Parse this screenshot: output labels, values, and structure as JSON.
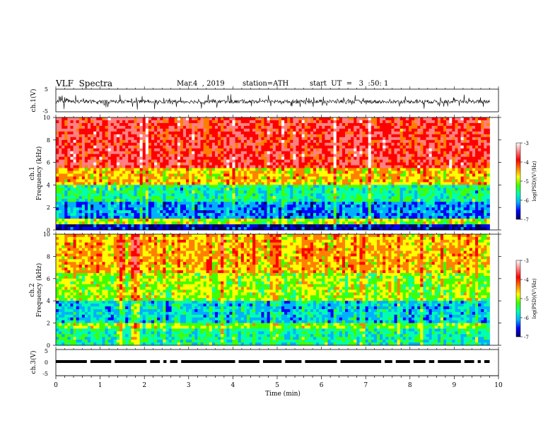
{
  "header": {
    "title": "VLF  Spectra",
    "date": "Mar.4  , 2019",
    "station": "station=ATH",
    "start": "start  UT  =   3  :50: 1"
  },
  "colorbar": {
    "label": "log(PSD)(V²/Hz)",
    "ticks": [
      "-3",
      "-4",
      "-5",
      "-6",
      "-7"
    ],
    "range": [
      -7,
      -3
    ],
    "colors": [
      "#000060",
      "#0000ff",
      "#00b0ff",
      "#00ffb0",
      "#40ff00",
      "#ffff00",
      "#ff8000",
      "#ff0000",
      "#ff8080",
      "#ffffff"
    ]
  },
  "chart_data": [
    {
      "type": "line",
      "panel": "ch1_waveform",
      "ylabel": "ch.1(V)",
      "ylim": [
        -5,
        5
      ],
      "yticks": [
        "5",
        "-5"
      ],
      "x": [
        0,
        9.8
      ],
      "y_center": -0.5,
      "description_values": "dense noisy waveform centered near -0.5 V with amplitude about ±2 V"
    },
    {
      "type": "heatmap",
      "panel": "ch1_spectrogram",
      "ylabel_top": "ch.1",
      "ylabel": "Frequency  (kHz)",
      "ylim": [
        0,
        10
      ],
      "yticks": [
        "0",
        "2",
        "4",
        "6",
        "8",
        "10"
      ],
      "bands": [
        {
          "from_khz": 0,
          "to_khz": 0.5,
          "level": -6.8
        },
        {
          "from_khz": 0.5,
          "to_khz": 1.0,
          "level": -5.0
        },
        {
          "from_khz": 1.0,
          "to_khz": 2.5,
          "level": -6.2
        },
        {
          "from_khz": 2.5,
          "to_khz": 4.0,
          "level": -5.6
        },
        {
          "from_khz": 4.0,
          "to_khz": 5.5,
          "level": -4.6
        },
        {
          "from_khz": 5.5,
          "to_khz": 10,
          "level": -3.8
        }
      ]
    },
    {
      "type": "heatmap",
      "panel": "ch2_spectrogram",
      "ylabel_top": "ch.2",
      "ylabel": "Frequency  (kHz)",
      "ylim": [
        0,
        10
      ],
      "yticks": [
        "0",
        "2",
        "4",
        "6",
        "8",
        "10"
      ],
      "bands": [
        {
          "from_khz": 0,
          "to_khz": 1.5,
          "level": -5.6
        },
        {
          "from_khz": 1.5,
          "to_khz": 2.0,
          "level": -5.1
        },
        {
          "from_khz": 2.0,
          "to_khz": 4.0,
          "level": -5.9
        },
        {
          "from_khz": 4.0,
          "to_khz": 6.5,
          "level": -5.0
        },
        {
          "from_khz": 6.5,
          "to_khz": 10,
          "level": -4.5
        }
      ]
    },
    {
      "type": "line",
      "panel": "ch3_waveform",
      "ylabel": "ch.3(V)",
      "ylim": [
        -5,
        5
      ],
      "yticks": [
        "5",
        "0",
        "-5"
      ],
      "x": [
        0,
        9.8
      ],
      "y_level": 0.4,
      "gaps_min": [
        0.7,
        1.25,
        2.05,
        2.35,
        2.5,
        2.75,
        4.05,
        4.6,
        5.1,
        5.55,
        6.35,
        7.35,
        7.6,
        8.0,
        8.35,
        8.55,
        9.15,
        9.45,
        9.6
      ]
    }
  ],
  "xaxis": {
    "label": "Time  (min)",
    "ticks": [
      "0",
      "1",
      "2",
      "3",
      "4",
      "5",
      "6",
      "7",
      "8",
      "9",
      "10"
    ],
    "xlim": [
      0,
      10
    ]
  }
}
